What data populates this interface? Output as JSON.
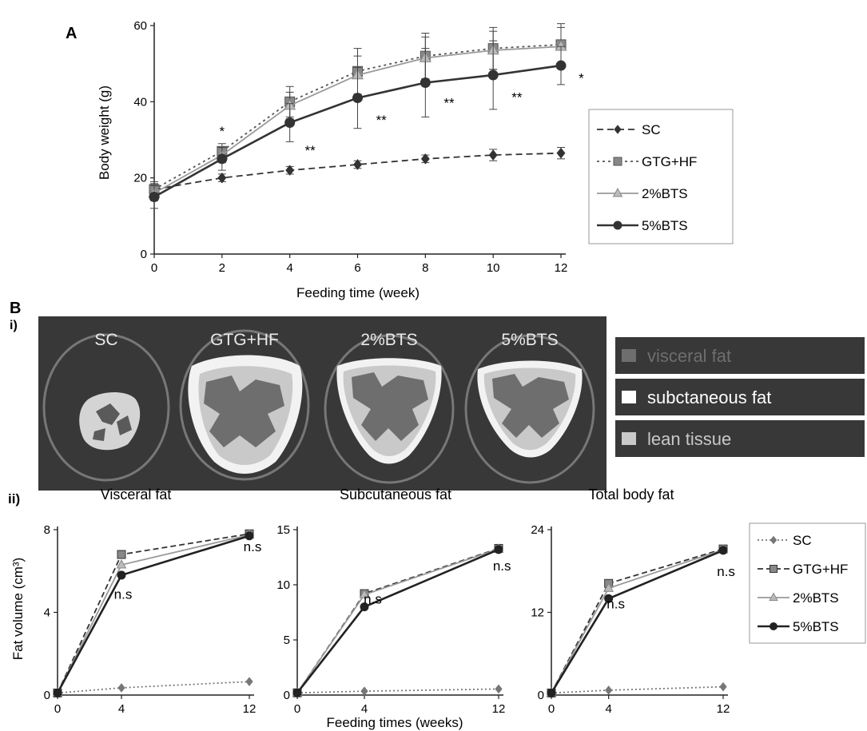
{
  "panel_labels": {
    "a": "A",
    "b": "B",
    "bi": "i)",
    "bii": "ii)"
  },
  "scan_panel": {
    "titles": [
      "SC",
      "GTG+HF",
      "2%BTS",
      "5%BTS"
    ],
    "legend": [
      "visceral fat",
      "subctaneous fat",
      "lean tissue"
    ],
    "colors": {
      "visceral": "#6e6e6e",
      "subcutaneous": "#ffffff",
      "lean": "#c9c9c9",
      "background": "#383838"
    }
  },
  "chart_data": [
    {
      "type": "line",
      "id": "body-weight",
      "title": "",
      "xlabel": "Feeding time (week)",
      "ylabel": "Body weight (g)",
      "x": [
        0,
        2,
        4,
        6,
        8,
        10,
        12
      ],
      "xlim": [
        0,
        12
      ],
      "ylim": [
        0,
        60
      ],
      "xticks": [
        0,
        2,
        4,
        6,
        8,
        10,
        12
      ],
      "yticks": [
        0,
        20,
        40,
        60
      ],
      "grid": false,
      "legend_position": "right",
      "series": [
        {
          "name": "SC",
          "values": [
            17,
            20,
            22,
            23.5,
            25,
            26,
            26.5
          ],
          "errors": [
            1.5,
            1,
            1,
            1,
            1,
            1.5,
            1.5
          ],
          "marker": "diamond",
          "dash": "8,5",
          "color": "#333333"
        },
        {
          "name": "GTG+HF",
          "values": [
            17,
            27,
            40,
            48,
            52,
            54,
            55
          ],
          "errors": [
            2,
            2,
            4,
            6,
            6,
            5.5,
            5.5
          ],
          "marker": "square",
          "dash": "3,4",
          "color": "#555555"
        },
        {
          "name": "2%BTS",
          "values": [
            16,
            26,
            39,
            47,
            51.5,
            53.5,
            54.5
          ],
          "errors": [
            2,
            2,
            3.5,
            5,
            5.5,
            5,
            5
          ],
          "marker": "triangle",
          "dash": "",
          "color": "#9a9a9a"
        },
        {
          "name": "5%BTS",
          "values": [
            15,
            25,
            34.5,
            41,
            45,
            47,
            49.5
          ],
          "errors": [
            3,
            3,
            5,
            8,
            9,
            9,
            5
          ],
          "marker": "circle",
          "dash": "",
          "color": "#333333"
        }
      ],
      "annotations": [
        {
          "text": "*",
          "x": 2,
          "y": 31
        },
        {
          "text": "**",
          "x": 4.6,
          "y": 26
        },
        {
          "text": "**",
          "x": 6.7,
          "y": 34
        },
        {
          "text": "**",
          "x": 8.7,
          "y": 38.5
        },
        {
          "text": "**",
          "x": 10.7,
          "y": 40
        },
        {
          "text": "*",
          "x": 12.6,
          "y": 45
        }
      ]
    },
    {
      "type": "line",
      "id": "visceral-fat",
      "title": "Visceral fat",
      "ylabel": "Fat volume (cm³)",
      "xlabel": "",
      "x": [
        0,
        4,
        12
      ],
      "xlim": [
        0,
        12
      ],
      "ylim": [
        0,
        8
      ],
      "xticks": [
        0,
        4,
        12
      ],
      "yticks": [
        0,
        4,
        8
      ],
      "grid": false,
      "series": [
        {
          "name": "SC",
          "values": [
            0.1,
            0.35,
            0.65
          ],
          "marker": "diamond",
          "dash": "2,3",
          "color": "#777777"
        },
        {
          "name": "GTG+HF",
          "values": [
            0.1,
            6.8,
            7.8
          ],
          "marker": "square",
          "dash": "7,4",
          "color": "#333333"
        },
        {
          "name": "2%BTS",
          "values": [
            0.1,
            6.3,
            7.75
          ],
          "marker": "triangle",
          "dash": "",
          "color": "#9a9a9a"
        },
        {
          "name": "5%BTS",
          "values": [
            0.1,
            5.8,
            7.7
          ],
          "marker": "circle",
          "dash": "",
          "color": "#222222"
        }
      ],
      "annotations": [
        {
          "text": "n.s",
          "x": 4.1,
          "y": 4.65
        },
        {
          "text": "n.s",
          "x": 12.2,
          "y": 6.95
        }
      ]
    },
    {
      "type": "line",
      "id": "subcutaneous-fat",
      "title": "Subcutaneous  fat",
      "ylabel": "",
      "xlabel": "Feeding times (weeks)",
      "x": [
        0,
        4,
        12
      ],
      "xlim": [
        0,
        12
      ],
      "ylim": [
        0,
        15
      ],
      "xticks": [
        0,
        4,
        12
      ],
      "yticks": [
        0,
        5,
        10,
        15
      ],
      "grid": false,
      "series": [
        {
          "name": "SC",
          "values": [
            0.2,
            0.35,
            0.55
          ],
          "marker": "diamond",
          "dash": "2,3",
          "color": "#777777"
        },
        {
          "name": "GTG+HF",
          "values": [
            0.2,
            9.2,
            13.3
          ],
          "marker": "square",
          "dash": "7,4",
          "color": "#333333"
        },
        {
          "name": "2%BTS",
          "values": [
            0.2,
            9.1,
            13.25
          ],
          "marker": "triangle",
          "dash": "",
          "color": "#9a9a9a"
        },
        {
          "name": "5%BTS",
          "values": [
            0.2,
            8.0,
            13.2
          ],
          "marker": "circle",
          "dash": "",
          "color": "#222222"
        }
      ],
      "annotations": [
        {
          "text": "n.s",
          "x": 4.5,
          "y": 8.3
        },
        {
          "text": "n.s",
          "x": 12.2,
          "y": 11.3
        }
      ]
    },
    {
      "type": "line",
      "id": "total-body-fat",
      "title": "Total body fat",
      "ylabel": "",
      "xlabel": "",
      "x": [
        0,
        4,
        12
      ],
      "xlim": [
        0,
        12
      ],
      "ylim": [
        0,
        24
      ],
      "xticks": [
        0,
        4,
        12
      ],
      "yticks": [
        0,
        12,
        24
      ],
      "grid": false,
      "legend_position": "right",
      "series": [
        {
          "name": "SC",
          "values": [
            0.3,
            0.7,
            1.2
          ],
          "marker": "diamond",
          "dash": "2,3",
          "color": "#777777"
        },
        {
          "name": "GTG+HF",
          "values": [
            0.3,
            16.2,
            21.2
          ],
          "marker": "square",
          "dash": "7,4",
          "color": "#333333"
        },
        {
          "name": "2%BTS",
          "values": [
            0.3,
            15.5,
            21.1
          ],
          "marker": "triangle",
          "dash": "",
          "color": "#9a9a9a"
        },
        {
          "name": "5%BTS",
          "values": [
            0.3,
            14.0,
            21.0
          ],
          "marker": "circle",
          "dash": "",
          "color": "#222222"
        }
      ],
      "annotations": [
        {
          "text": "n.s",
          "x": 4.5,
          "y": 12.6
        },
        {
          "text": "n.s",
          "x": 12.2,
          "y": 17.3
        }
      ]
    }
  ]
}
